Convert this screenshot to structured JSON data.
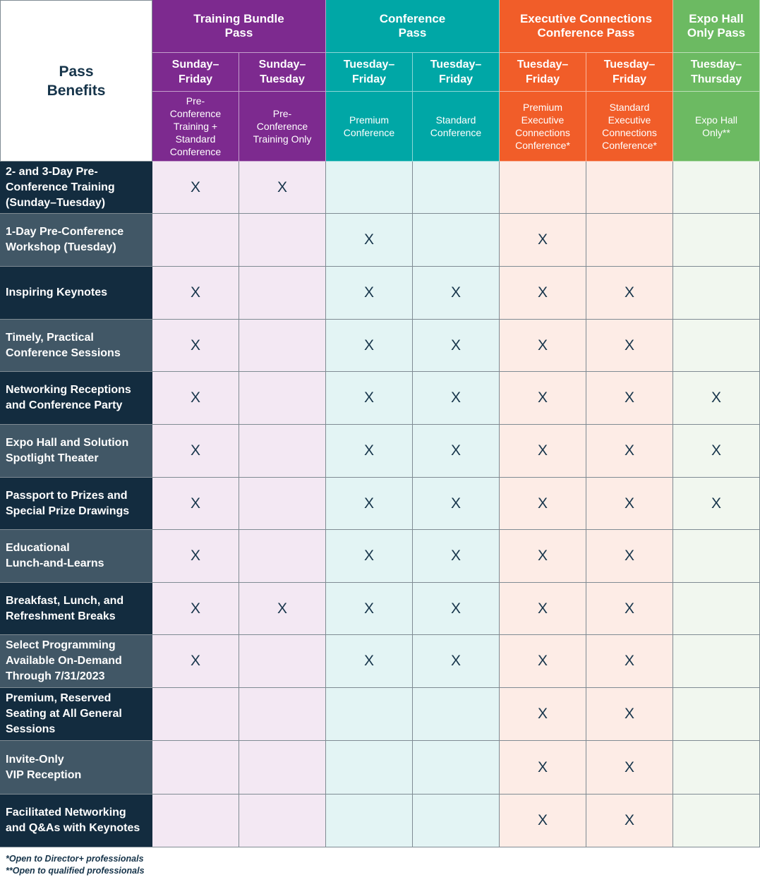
{
  "corner": {
    "lines": [
      "Pass",
      "Benefits"
    ]
  },
  "passes": [
    {
      "title": [
        "Training Bundle",
        "Pass"
      ],
      "color": "#7d2a8f",
      "tint": "#f3e8f3",
      "span": 2
    },
    {
      "title": [
        "Conference",
        "Pass"
      ],
      "color": "#00a7a6",
      "tint": "#e3f4f4",
      "span": 2
    },
    {
      "title": [
        "Executive Connections",
        "Conference Pass"
      ],
      "color": "#f15d29",
      "tint": "#fdece6",
      "span": 2
    },
    {
      "title": [
        "Expo Hall",
        "Only Pass"
      ],
      "color": "#6cba62",
      "tint": "#f1f7ef",
      "span": 1
    }
  ],
  "columns": [
    {
      "days": [
        "Sunday–",
        "Friday"
      ],
      "desc": [
        "Pre-",
        "Conference",
        "Training +",
        "Standard",
        "Conference"
      ]
    },
    {
      "days": [
        "Sunday–",
        "Tuesday"
      ],
      "desc": [
        "Pre-",
        "Conference",
        "Training Only"
      ]
    },
    {
      "days": [
        "Tuesday–",
        "Friday"
      ],
      "desc": [
        "Premium",
        "Conference"
      ]
    },
    {
      "days": [
        "Tuesday–",
        "Friday"
      ],
      "desc": [
        "Standard",
        "Conference"
      ]
    },
    {
      "days": [
        "Tuesday–",
        "Friday"
      ],
      "desc": [
        "Premium",
        "Executive",
        "Connections",
        "Conference*"
      ]
    },
    {
      "days": [
        "Tuesday–",
        "Friday"
      ],
      "desc": [
        "Standard",
        "Executive",
        "Connections",
        "Conference*"
      ]
    },
    {
      "days": [
        "Tuesday–",
        "Thursday"
      ],
      "desc": [
        "Expo Hall",
        "Only**"
      ]
    }
  ],
  "mark_symbol": "X",
  "benefits": [
    {
      "label": [
        "2- and 3-Day Pre-",
        "Conference Training",
        "(Sunday–Tuesday)"
      ],
      "marks": [
        1,
        1,
        0,
        0,
        0,
        0,
        0
      ]
    },
    {
      "label": [
        "1-Day Pre-Conference",
        "Workshop (Tuesday)"
      ],
      "marks": [
        0,
        0,
        1,
        0,
        1,
        0,
        0
      ]
    },
    {
      "label": [
        "Inspiring Keynotes"
      ],
      "marks": [
        1,
        0,
        1,
        1,
        1,
        1,
        0
      ]
    },
    {
      "label": [
        "Timely, Practical",
        "Conference Sessions"
      ],
      "marks": [
        1,
        0,
        1,
        1,
        1,
        1,
        0
      ]
    },
    {
      "label": [
        "Networking Receptions",
        "and Conference Party"
      ],
      "marks": [
        1,
        0,
        1,
        1,
        1,
        1,
        1
      ]
    },
    {
      "label": [
        "Expo Hall and Solution",
        "Spotlight Theater"
      ],
      "marks": [
        1,
        0,
        1,
        1,
        1,
        1,
        1
      ]
    },
    {
      "label": [
        "Passport to Prizes and",
        "Special Prize Drawings"
      ],
      "marks": [
        1,
        0,
        1,
        1,
        1,
        1,
        1
      ]
    },
    {
      "label": [
        "Educational",
        "Lunch-and-Learns"
      ],
      "marks": [
        1,
        0,
        1,
        1,
        1,
        1,
        0
      ]
    },
    {
      "label": [
        "Breakfast, Lunch, and",
        "Refreshment Breaks"
      ],
      "marks": [
        1,
        1,
        1,
        1,
        1,
        1,
        0
      ]
    },
    {
      "label": [
        "Select Programming",
        "Available On-Demand",
        "Through 7/31/2023"
      ],
      "marks": [
        1,
        0,
        1,
        1,
        1,
        1,
        0
      ]
    },
    {
      "label": [
        "Premium, Reserved",
        "Seating at All General",
        "Sessions"
      ],
      "marks": [
        0,
        0,
        0,
        0,
        1,
        1,
        0
      ]
    },
    {
      "label": [
        "Invite-Only",
        "VIP Reception"
      ],
      "marks": [
        0,
        0,
        0,
        0,
        1,
        1,
        0
      ]
    },
    {
      "label": [
        "Facilitated Networking",
        "and Q&As with Keynotes"
      ],
      "marks": [
        0,
        0,
        0,
        0,
        1,
        1,
        0
      ]
    }
  ],
  "footnotes": [
    "*Open to Director+ professionals",
    "**Open to qualified professionals"
  ]
}
